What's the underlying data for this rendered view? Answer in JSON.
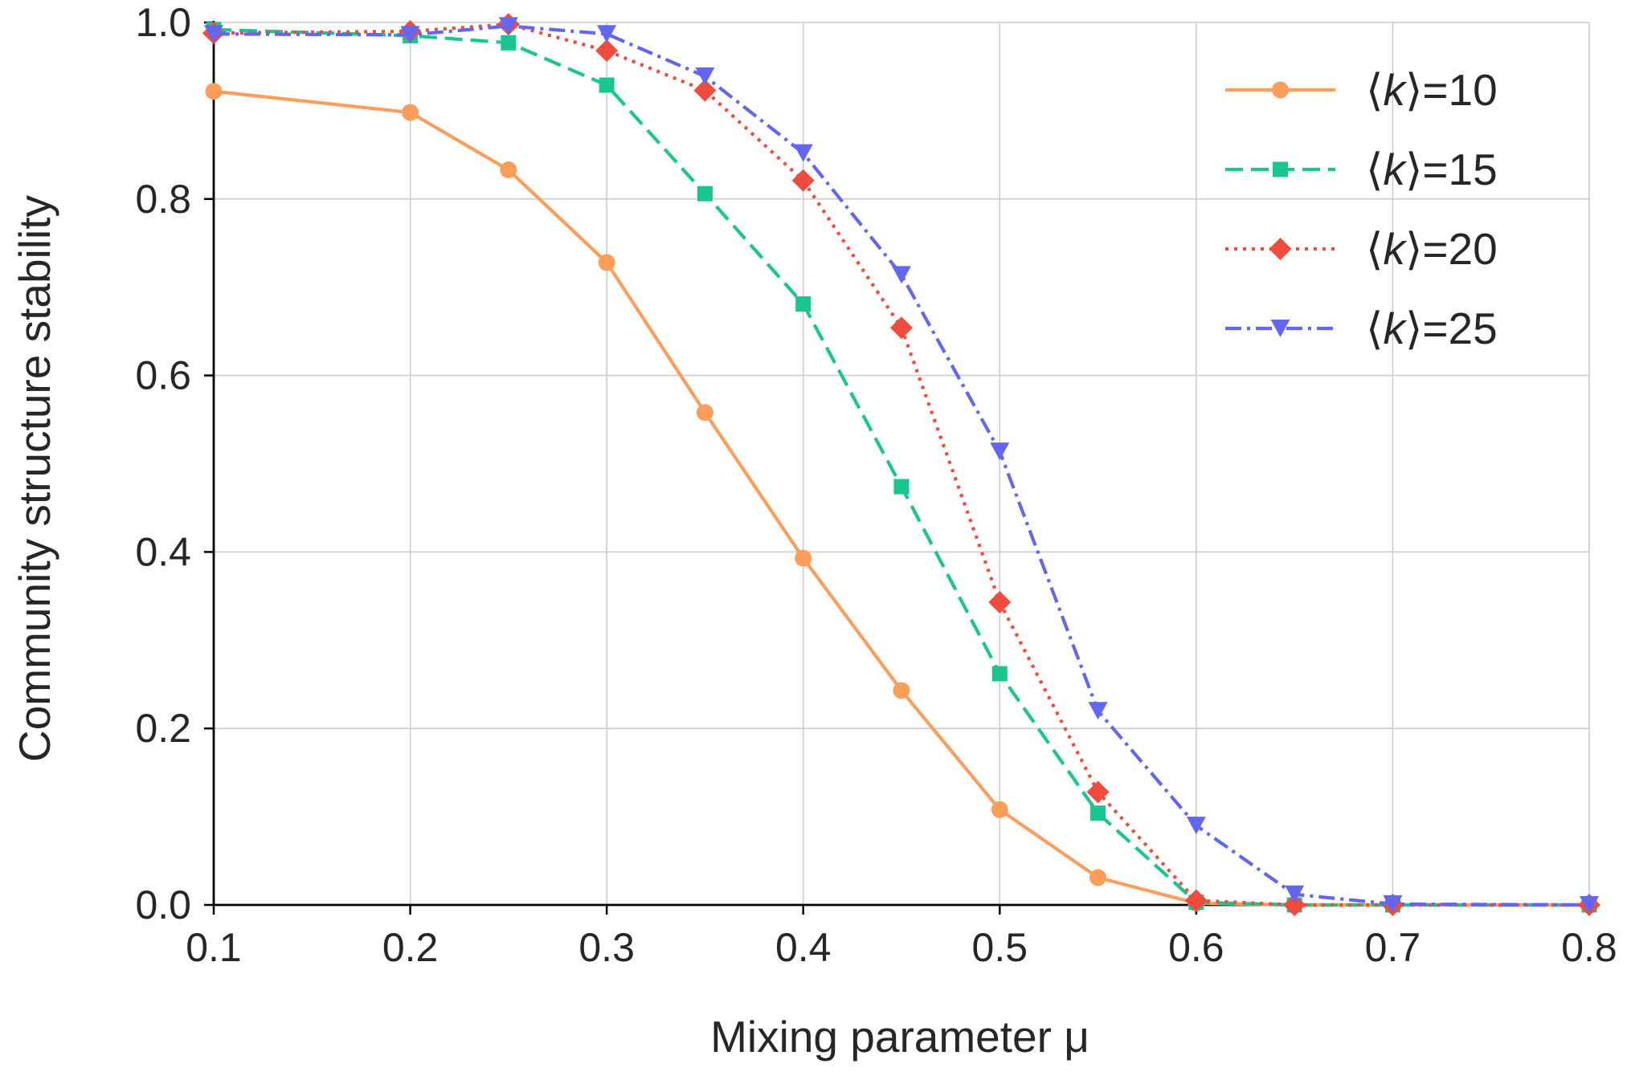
{
  "chart_data": {
    "type": "line",
    "title": "",
    "xlabel": "Mixing parameter μ",
    "ylabel": "Community structure stability",
    "xlim": [
      0.1,
      0.8
    ],
    "ylim": [
      0.0,
      1.0
    ],
    "grid": true,
    "legend_position": "top-right",
    "x_ticks": [
      "0.1",
      "0.2",
      "0.3",
      "0.4",
      "0.5",
      "0.6",
      "0.7",
      "0.8"
    ],
    "y_ticks": [
      "0.0",
      "0.2",
      "0.4",
      "0.6",
      "0.8",
      "1.0"
    ],
    "x": [
      0.1,
      0.2,
      0.25,
      0.3,
      0.35,
      0.4,
      0.45,
      0.5,
      0.55,
      0.6,
      0.65,
      0.7,
      0.8
    ],
    "series": [
      {
        "name": "⟨k⟩=10",
        "legend_prefix": "⟨",
        "legend_var": "k",
        "legend_suffix": "⟩=10",
        "color": "#fc9e5a",
        "linestyle": "solid",
        "marker": "circle",
        "values": [
          0.922,
          0.898,
          0.833,
          0.728,
          0.558,
          0.393,
          0.243,
          0.108,
          0.031,
          0.002,
          0.0,
          0.0,
          0.0
        ]
      },
      {
        "name": "⟨k⟩=15",
        "legend_prefix": "⟨",
        "legend_var": "k",
        "legend_suffix": "⟩=15",
        "color": "#17c78f",
        "linestyle": "dashed",
        "marker": "square",
        "values": [
          0.992,
          0.985,
          0.977,
          0.929,
          0.806,
          0.681,
          0.474,
          0.262,
          0.104,
          0.003,
          0.0,
          0.0,
          0.0
        ]
      },
      {
        "name": "⟨k⟩=20",
        "legend_prefix": "⟨",
        "legend_var": "k",
        "legend_suffix": "⟩=20",
        "color": "#f04c3e",
        "linestyle": "dotted",
        "marker": "diamond",
        "values": [
          0.988,
          0.99,
          0.998,
          0.968,
          0.923,
          0.821,
          0.654,
          0.343,
          0.128,
          0.005,
          0.0,
          0.0,
          0.0
        ]
      },
      {
        "name": "⟨k⟩=25",
        "legend_prefix": "⟨",
        "legend_var": "k",
        "legend_suffix": "⟩=25",
        "color": "#6266f0",
        "linestyle": "dashdot",
        "marker": "triangle-down",
        "values": [
          0.987,
          0.986,
          0.996,
          0.987,
          0.939,
          0.852,
          0.714,
          0.514,
          0.22,
          0.09,
          0.012,
          0.001,
          0.0
        ]
      }
    ]
  }
}
